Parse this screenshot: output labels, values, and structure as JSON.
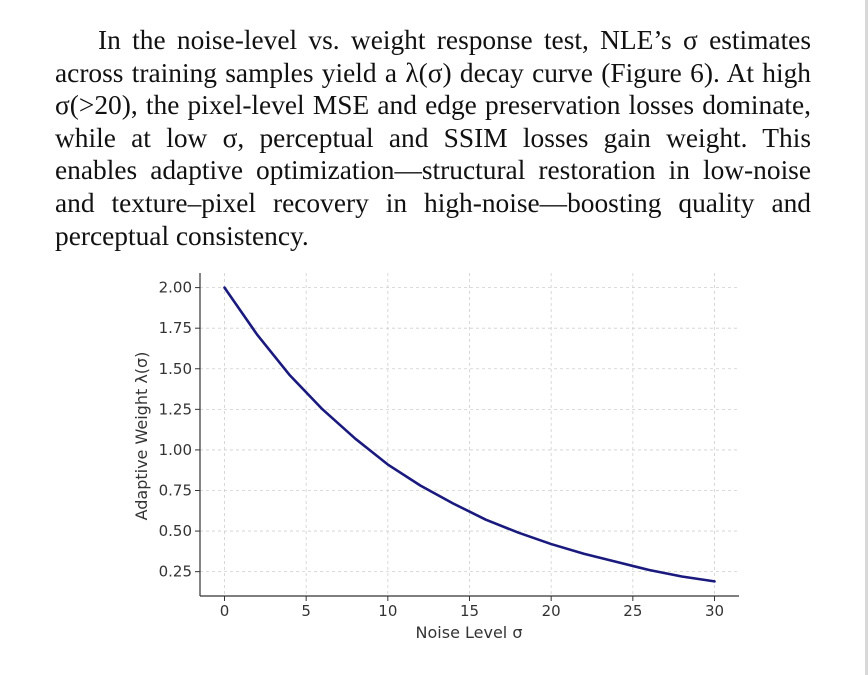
{
  "paragraph": {
    "text": "In the noise-level vs. weight response test, NLE’s σ estimates across training samples yield a λ(σ) decay curve (Figure 6). At high σ(>20), the pixel-level MSE and edge preservation losses dominate, while at low σ, perceptual and SSIM losses gain weight. This enables adaptive optimization—structural restoration in low-noise and texture–pixel recovery in high-noise—boosting quality and perceptual consistency."
  },
  "chart_data": {
    "type": "line",
    "xlabel": "Noise Level σ",
    "ylabel": "Adaptive Weight λ(σ)",
    "xlim": [
      -1.5,
      31.5
    ],
    "ylim": [
      0.1,
      2.09
    ],
    "xticks": [
      0,
      5,
      10,
      15,
      20,
      25,
      30
    ],
    "xtick_labels": [
      "0",
      "5",
      "10",
      "15",
      "20",
      "25",
      "30"
    ],
    "yticks": [
      0.25,
      0.5,
      0.75,
      1.0,
      1.25,
      1.5,
      1.75,
      2.0
    ],
    "ytick_labels": [
      "0.25",
      "0.50",
      "0.75",
      "1.00",
      "1.25",
      "1.50",
      "1.75",
      "2.00"
    ],
    "grid": true,
    "series": [
      {
        "color": "#1a1a7e",
        "x": [
          0,
          2,
          4,
          6,
          8,
          10,
          12,
          14,
          16,
          18,
          20,
          22,
          24,
          26,
          28,
          30
        ],
        "y": [
          2.0,
          1.71,
          1.46,
          1.25,
          1.07,
          0.91,
          0.78,
          0.67,
          0.57,
          0.49,
          0.42,
          0.36,
          0.31,
          0.26,
          0.22,
          0.19
        ]
      }
    ]
  }
}
